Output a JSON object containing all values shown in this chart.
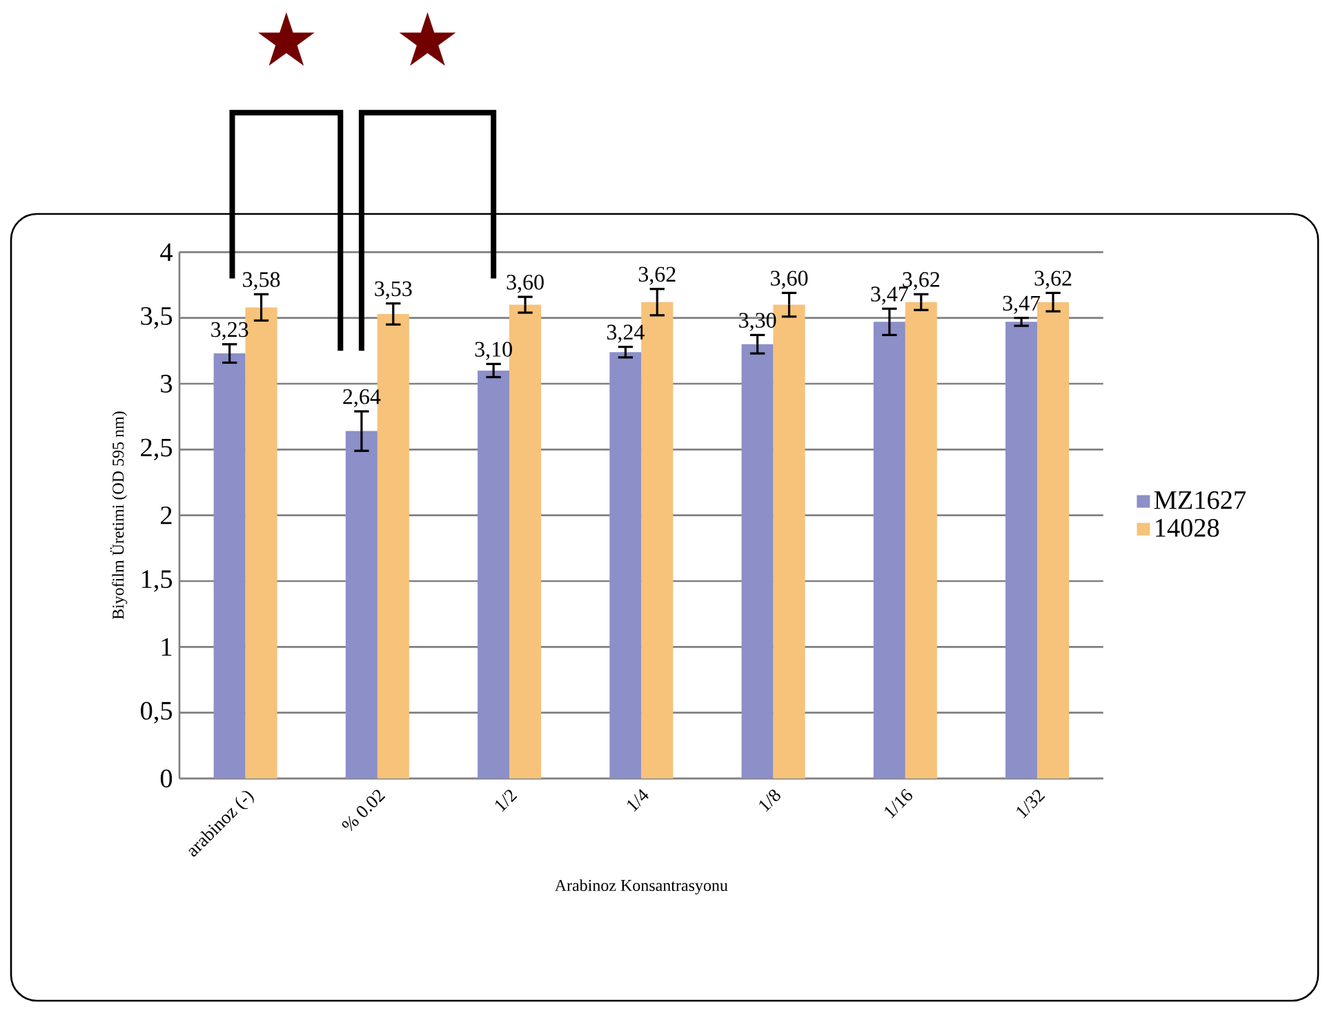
{
  "chart_data": {
    "type": "bar",
    "categories": [
      "arabinoz (-)",
      "% 0.02",
      "1/2",
      "1/4",
      "1/8",
      "1/16",
      "1/32"
    ],
    "xlabel": "Arabinoz Konsantrasyonu",
    "ylabel": "Biyofilm Üretimi  (OD 595 nm)",
    "series": [
      {
        "name": "MZ1627",
        "color": "#8c8fc8",
        "values": [
          3.23,
          2.64,
          3.1,
          3.24,
          3.3,
          3.47,
          3.47
        ],
        "errors": [
          0.07,
          0.15,
          0.05,
          0.04,
          0.07,
          0.1,
          0.03
        ],
        "value_labels": [
          "3,23",
          "2,64",
          "3,10",
          "3,24",
          "3,30",
          "3,47",
          "3,47"
        ]
      },
      {
        "name": "14028",
        "color": "#f7c27a",
        "values": [
          3.58,
          3.53,
          3.6,
          3.62,
          3.6,
          3.62,
          3.62
        ],
        "errors": [
          0.1,
          0.08,
          0.06,
          0.1,
          0.09,
          0.06,
          0.07
        ],
        "value_labels": [
          "3,58",
          "3,53",
          "3,60",
          "3,62",
          "3,60",
          "3,62",
          "3,62"
        ]
      }
    ],
    "ylim": [
      0,
      4
    ],
    "yticks": [
      0,
      {
        "value": 0.5,
        "label": "0,5"
      },
      1,
      {
        "value": 1.5,
        "label": "1,5"
      },
      2,
      {
        "value": 2.5,
        "label": "2,5"
      },
      3,
      {
        "value": 3.5,
        "label": "3,5"
      },
      4
    ],
    "grid": "y",
    "legend": "right",
    "annotations": [
      "★",
      "★"
    ]
  }
}
